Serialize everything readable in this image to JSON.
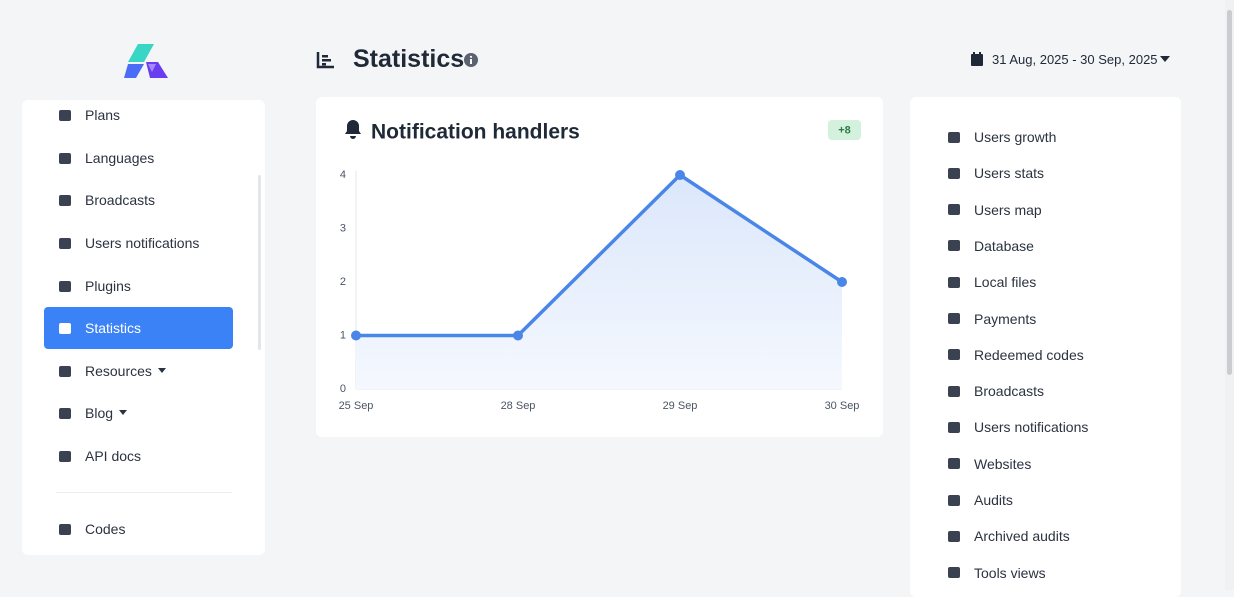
{
  "header": {
    "title": "Statistics",
    "date_range": "31 Aug, 2025 - 30 Sep, 2025"
  },
  "sidebar": {
    "items": [
      "Plans",
      "Languages",
      "Broadcasts",
      "Users notifications",
      "Plugins",
      "Statistics",
      "Resources",
      "Blog",
      "API docs",
      "Codes"
    ]
  },
  "chart_data": {
    "type": "line",
    "title": "Notification handlers",
    "badge": "+8",
    "categories": [
      "25 Sep",
      "28 Sep",
      "29 Sep",
      "30 Sep"
    ],
    "values": [
      1,
      1,
      4,
      2
    ],
    "color": "#4a86e8",
    "ylim": [
      0,
      4
    ],
    "yticks": [
      0,
      1,
      2,
      3,
      4
    ],
    "grid": false
  },
  "right_menu": {
    "items": [
      "Users growth",
      "Users stats",
      "Users map",
      "Database",
      "Local files",
      "Payments",
      "Redeemed codes",
      "Broadcasts",
      "Users notifications",
      "Websites",
      "Audits",
      "Archived audits",
      "Tools views"
    ]
  }
}
